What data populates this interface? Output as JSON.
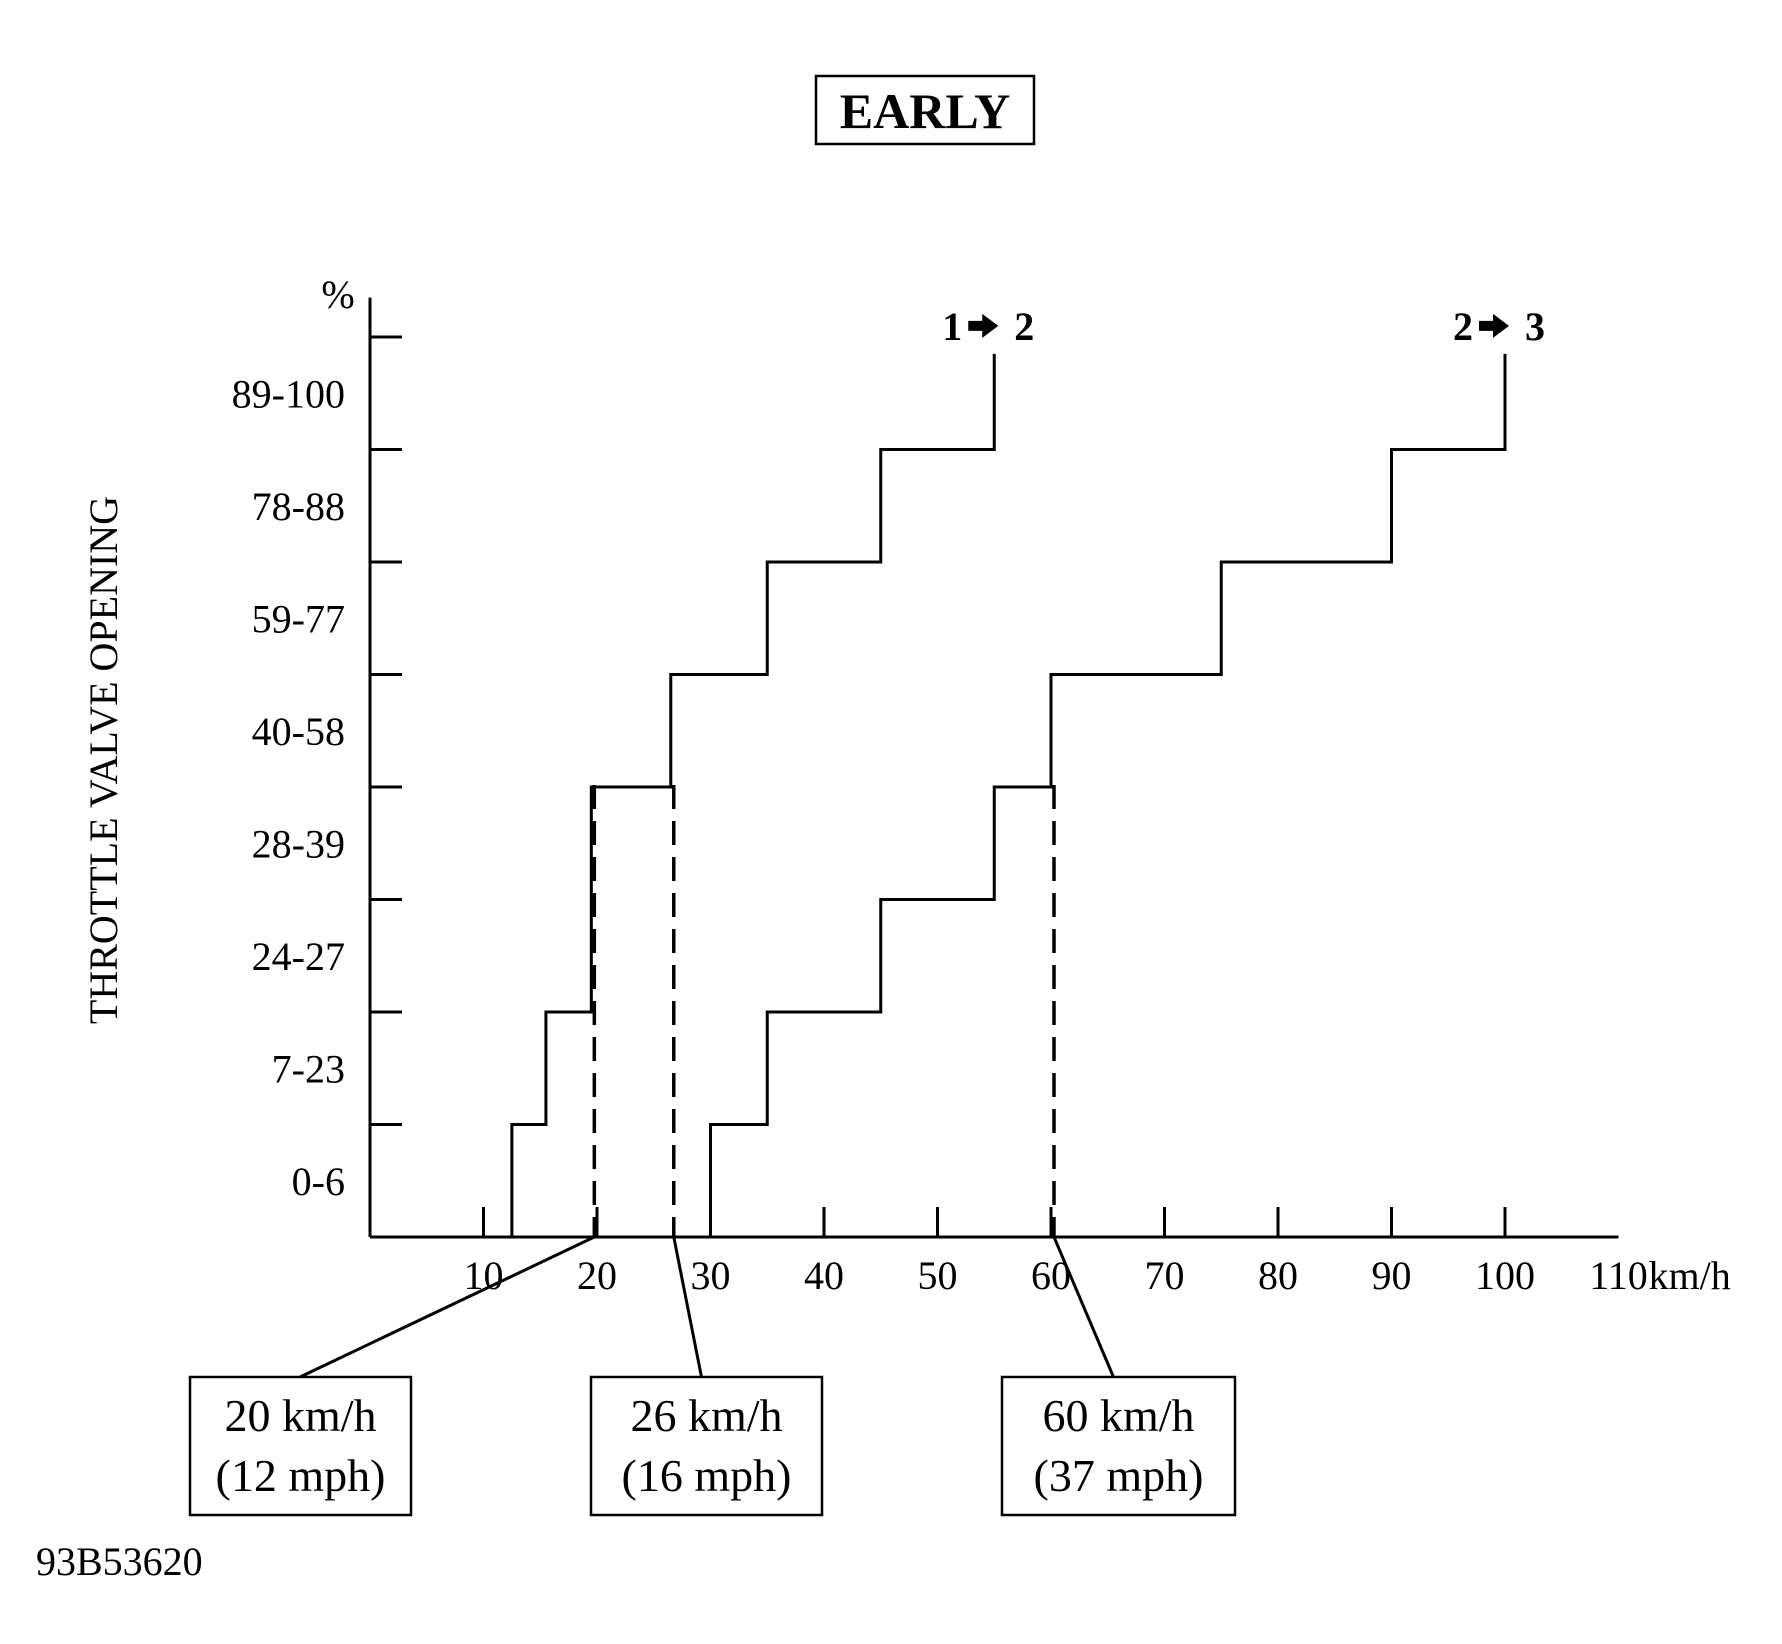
{
  "chart_data": {
    "type": "line",
    "title": "EARLY",
    "ylabel": "THROTTLE VALVE OPENING",
    "y_unit": "%",
    "x_unit": "km/h",
    "x_ticks": [
      10,
      20,
      30,
      40,
      50,
      60,
      70,
      80,
      90,
      100,
      110
    ],
    "xlim": [
      0,
      110
    ],
    "y_categories": [
      "0-6",
      "7-23",
      "24-27",
      "28-39",
      "40-58",
      "59-77",
      "78-88",
      "89-100"
    ],
    "grid": false,
    "series": [
      {
        "name": "1 → 2",
        "label_from": "1",
        "label_to": "2",
        "steps": [
          {
            "x": 12.5,
            "y_from": 0,
            "y_to": 1
          },
          {
            "x": 15.5,
            "y_from": 1,
            "y_to": 2
          },
          {
            "x": 19.5,
            "y_from": 2,
            "y_to": 4
          },
          {
            "x": 26.5,
            "y_from": 4,
            "y_to": 5
          },
          {
            "x": 35,
            "y_from": 5,
            "y_to": 6
          },
          {
            "x": 45,
            "y_from": 6,
            "y_to": 7
          },
          {
            "x": 55,
            "y_from": 7,
            "y_to": 8
          }
        ]
      },
      {
        "name": "2 → 3",
        "label_from": "2",
        "label_to": "3",
        "steps": [
          {
            "x": 30,
            "y_from": 0,
            "y_to": 1
          },
          {
            "x": 35,
            "y_from": 1,
            "y_to": 2
          },
          {
            "x": 45,
            "y_from": 2,
            "y_to": 3
          },
          {
            "x": 55,
            "y_from": 3,
            "y_to": 4
          },
          {
            "x": 60,
            "y_from": 4,
            "y_to": 5
          },
          {
            "x": 75,
            "y_from": 5,
            "y_to": 6
          },
          {
            "x": 90,
            "y_from": 6,
            "y_to": 7
          },
          {
            "x": 100,
            "y_from": 7,
            "y_to": 8
          }
        ]
      }
    ],
    "annotations": [
      {
        "x": 19.5,
        "line1": "20 km/h",
        "line2": "(12 mph)"
      },
      {
        "x": 26.5,
        "line1": "26 km/h",
        "line2": "(16 mph)"
      },
      {
        "x": 60,
        "line1": "60 km/h",
        "line2": "(37 mph)"
      }
    ]
  },
  "figure_id": "93B53620",
  "colors": {
    "ink": "#000000",
    "background": "#ffffff"
  }
}
